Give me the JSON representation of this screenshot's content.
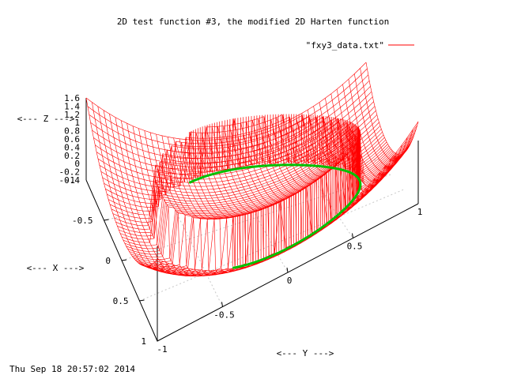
{
  "chart_data": {
    "type": "surface",
    "title": "2D test function #3, the modified 2D Harten function",
    "xlabel": "<--- X --->",
    "ylabel": "<--- Y --->",
    "zlabel": "<--- Z --->",
    "timestamp": "Thu Sep 18 20:57:02 2014",
    "legend": {
      "label": "\"fxy3_data.txt\"",
      "position": "top-right"
    },
    "xlim": [
      -1,
      1
    ],
    "ylim": [
      -1,
      1
    ],
    "zlim": [
      -0.4,
      1.6
    ],
    "x_ticks": [
      "-1",
      "-0.5",
      "0",
      "0.5",
      "1"
    ],
    "y_ticks": [
      "-1",
      "-0.5",
      "0",
      "0.5",
      "1"
    ],
    "z_ticks": [
      "1.6",
      "1.4",
      "1.2",
      "1",
      "0.8",
      "0.6",
      "0.4",
      "0.2",
      "0",
      "-0.2",
      "-0.4"
    ],
    "grid": true,
    "surface": {
      "description_values": {
        "ring_radius": 0.75,
        "inner_min_z": 0.3,
        "ring_max_z": 1.0,
        "step_low_z": -0.2,
        "corner_max_z": 1.6
      },
      "colors": {
        "top": "#ff0000",
        "underside": "#00c000"
      }
    },
    "series": [
      {
        "name": "\"fxy3_data.txt\"",
        "color": "#ff0000"
      }
    ]
  }
}
